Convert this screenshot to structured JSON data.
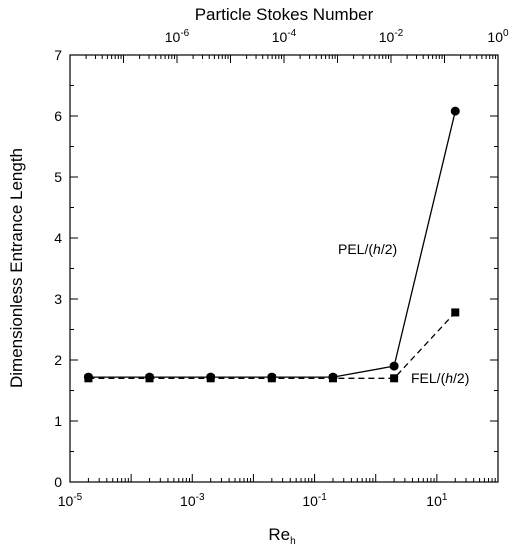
{
  "chart_data": {
    "type": "line",
    "ylabel": "Dimensionless Entrance Length",
    "xlabel": {
      "main": "Re",
      "sub": "h"
    },
    "top_axis_label": "Particle Stokes Number",
    "ylim": [
      0,
      7
    ],
    "yticks": [
      "0",
      "1",
      "2",
      "3",
      "4",
      "5",
      "6",
      "7"
    ],
    "x_scale": "log",
    "x_range_log10": [
      -5,
      2
    ],
    "xtick_labels": [
      {
        "base": "10",
        "exp": "-5",
        "log10": -5
      },
      {
        "base": "10",
        "exp": "-3",
        "log10": -3
      },
      {
        "base": "10",
        "exp": "-1",
        "log10": -1
      },
      {
        "base": "10",
        "exp": "1",
        "log10": 1
      }
    ],
    "top_x_range_log10": [
      -8,
      0
    ],
    "top_xtick_labels": [
      {
        "base": "10",
        "exp": "-6",
        "log10": -6
      },
      {
        "base": "10",
        "exp": "-4",
        "log10": -4
      },
      {
        "base": "10",
        "exp": "-2",
        "log10": -2
      },
      {
        "base": "10",
        "exp": "0",
        "log10": 0
      }
    ],
    "x": [
      2e-05,
      0.0002,
      0.002,
      0.02,
      0.2,
      2,
      20
    ],
    "series": [
      {
        "name_main": "PEL/(",
        "name_italic": "h",
        "name_end": "/2)",
        "marker": "circle",
        "line": "solid",
        "values": [
          1.72,
          1.72,
          1.72,
          1.72,
          1.72,
          1.9,
          6.08
        ]
      },
      {
        "name_main": "FEL/(",
        "name_italic": "h",
        "name_end": "/2)",
        "marker": "square",
        "line": "dashed",
        "values": [
          1.7,
          1.7,
          1.7,
          1.7,
          1.7,
          1.7,
          2.78
        ]
      }
    ],
    "grid": false,
    "legend": "inline annotations"
  }
}
